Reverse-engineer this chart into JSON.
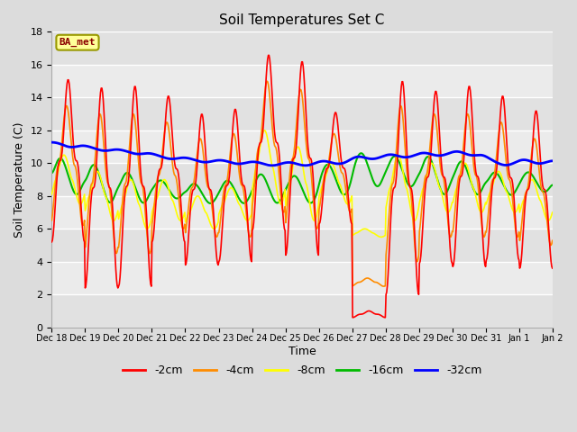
{
  "title": "Soil Temperatures Set C",
  "xlabel": "Time",
  "ylabel": "Soil Temperature (C)",
  "ylim": [
    0,
    18
  ],
  "yticks": [
    0,
    2,
    4,
    6,
    8,
    10,
    12,
    14,
    16,
    18
  ],
  "annotation_label": "BA_met",
  "annotation_color": "#8B0000",
  "annotation_bg": "#FFFF99",
  "annotation_edge": "#999900",
  "x_tick_labels": [
    "Dec 18",
    "Dec 19",
    "Dec 20",
    "Dec 21",
    "Dec 22",
    "Dec 23",
    "Dec 24",
    "Dec 25",
    "Dec 26",
    "Dec 27",
    "Dec 28",
    "Dec 29",
    "Dec 30",
    "Dec 31",
    "Jan 1",
    "Jan 2"
  ],
  "lines": {
    "-2cm": {
      "color": "#FF0000",
      "lw": 1.2
    },
    "-4cm": {
      "color": "#FF8C00",
      "lw": 1.2
    },
    "-8cm": {
      "color": "#FFFF00",
      "lw": 1.2
    },
    "-16cm": {
      "color": "#00BB00",
      "lw": 1.5
    },
    "-32cm": {
      "color": "#0000FF",
      "lw": 2.0
    }
  },
  "background_color": "#DCDCDC",
  "plot_bg": "#EBEBEB",
  "grid_color": "#FFFFFF",
  "figsize": [
    6.4,
    4.8
  ],
  "dpi": 100
}
